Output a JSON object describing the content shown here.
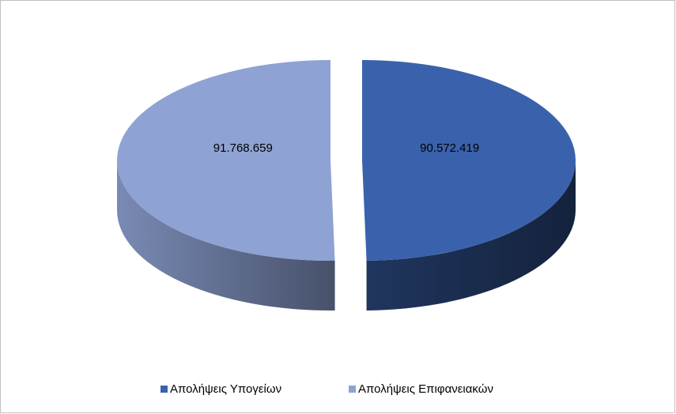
{
  "chart_data": {
    "type": "pie",
    "categories": [
      "Απολήψεις Υπογείων",
      "Απολήψεις Επιφανειακών"
    ],
    "values": [
      90572419,
      91768659
    ],
    "value_labels": [
      "90.572.419",
      "91.768.659"
    ],
    "colors": [
      "#3a62ac",
      "#8ea2d4"
    ],
    "legend": "bottom"
  }
}
